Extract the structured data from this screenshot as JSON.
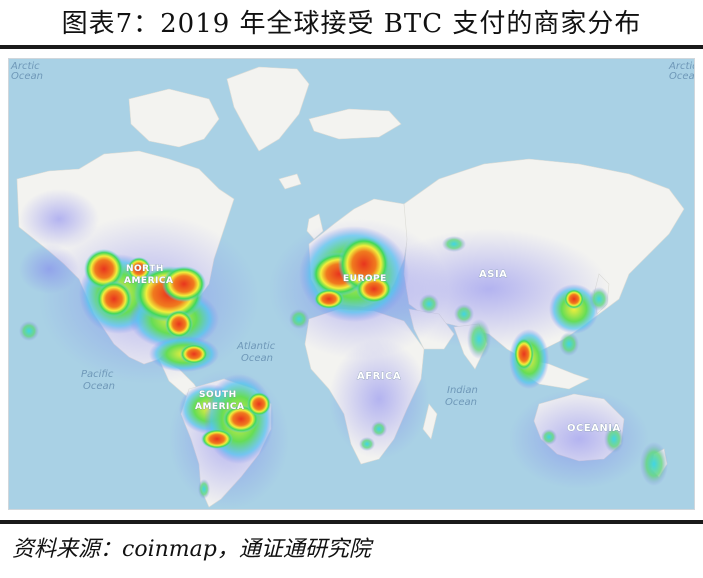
{
  "figure": {
    "title": "图表7：2019 年全球接受 BTC 支付的商家分布",
    "source": "资料来源：coinmap，通证通研究院"
  },
  "map": {
    "colors": {
      "ocean": "#a9d1e5",
      "land": "#f3f3f0",
      "heat_low": "#8a8af0",
      "heat_mid": "#f2ee3c",
      "heat_high": "#e8351e"
    },
    "labels": {
      "north_america": [
        "NORTH",
        "AMERICA"
      ],
      "south_america": [
        "SOUTH",
        "AMERICA"
      ],
      "europe": "EUROPE",
      "asia": "ASIA",
      "africa": "AFRICA",
      "oceania": "OCEANIA",
      "pacific_ocean": [
        "Pacific",
        "Ocean"
      ],
      "atlantic_ocean": [
        "Atlantic",
        "Ocean"
      ],
      "indian_ocean": [
        "Indian",
        "Ocean"
      ],
      "arctic_left": [
        "Arctic",
        "Ocean"
      ],
      "arctic_right": [
        "Arctic",
        "Ocean"
      ]
    }
  }
}
